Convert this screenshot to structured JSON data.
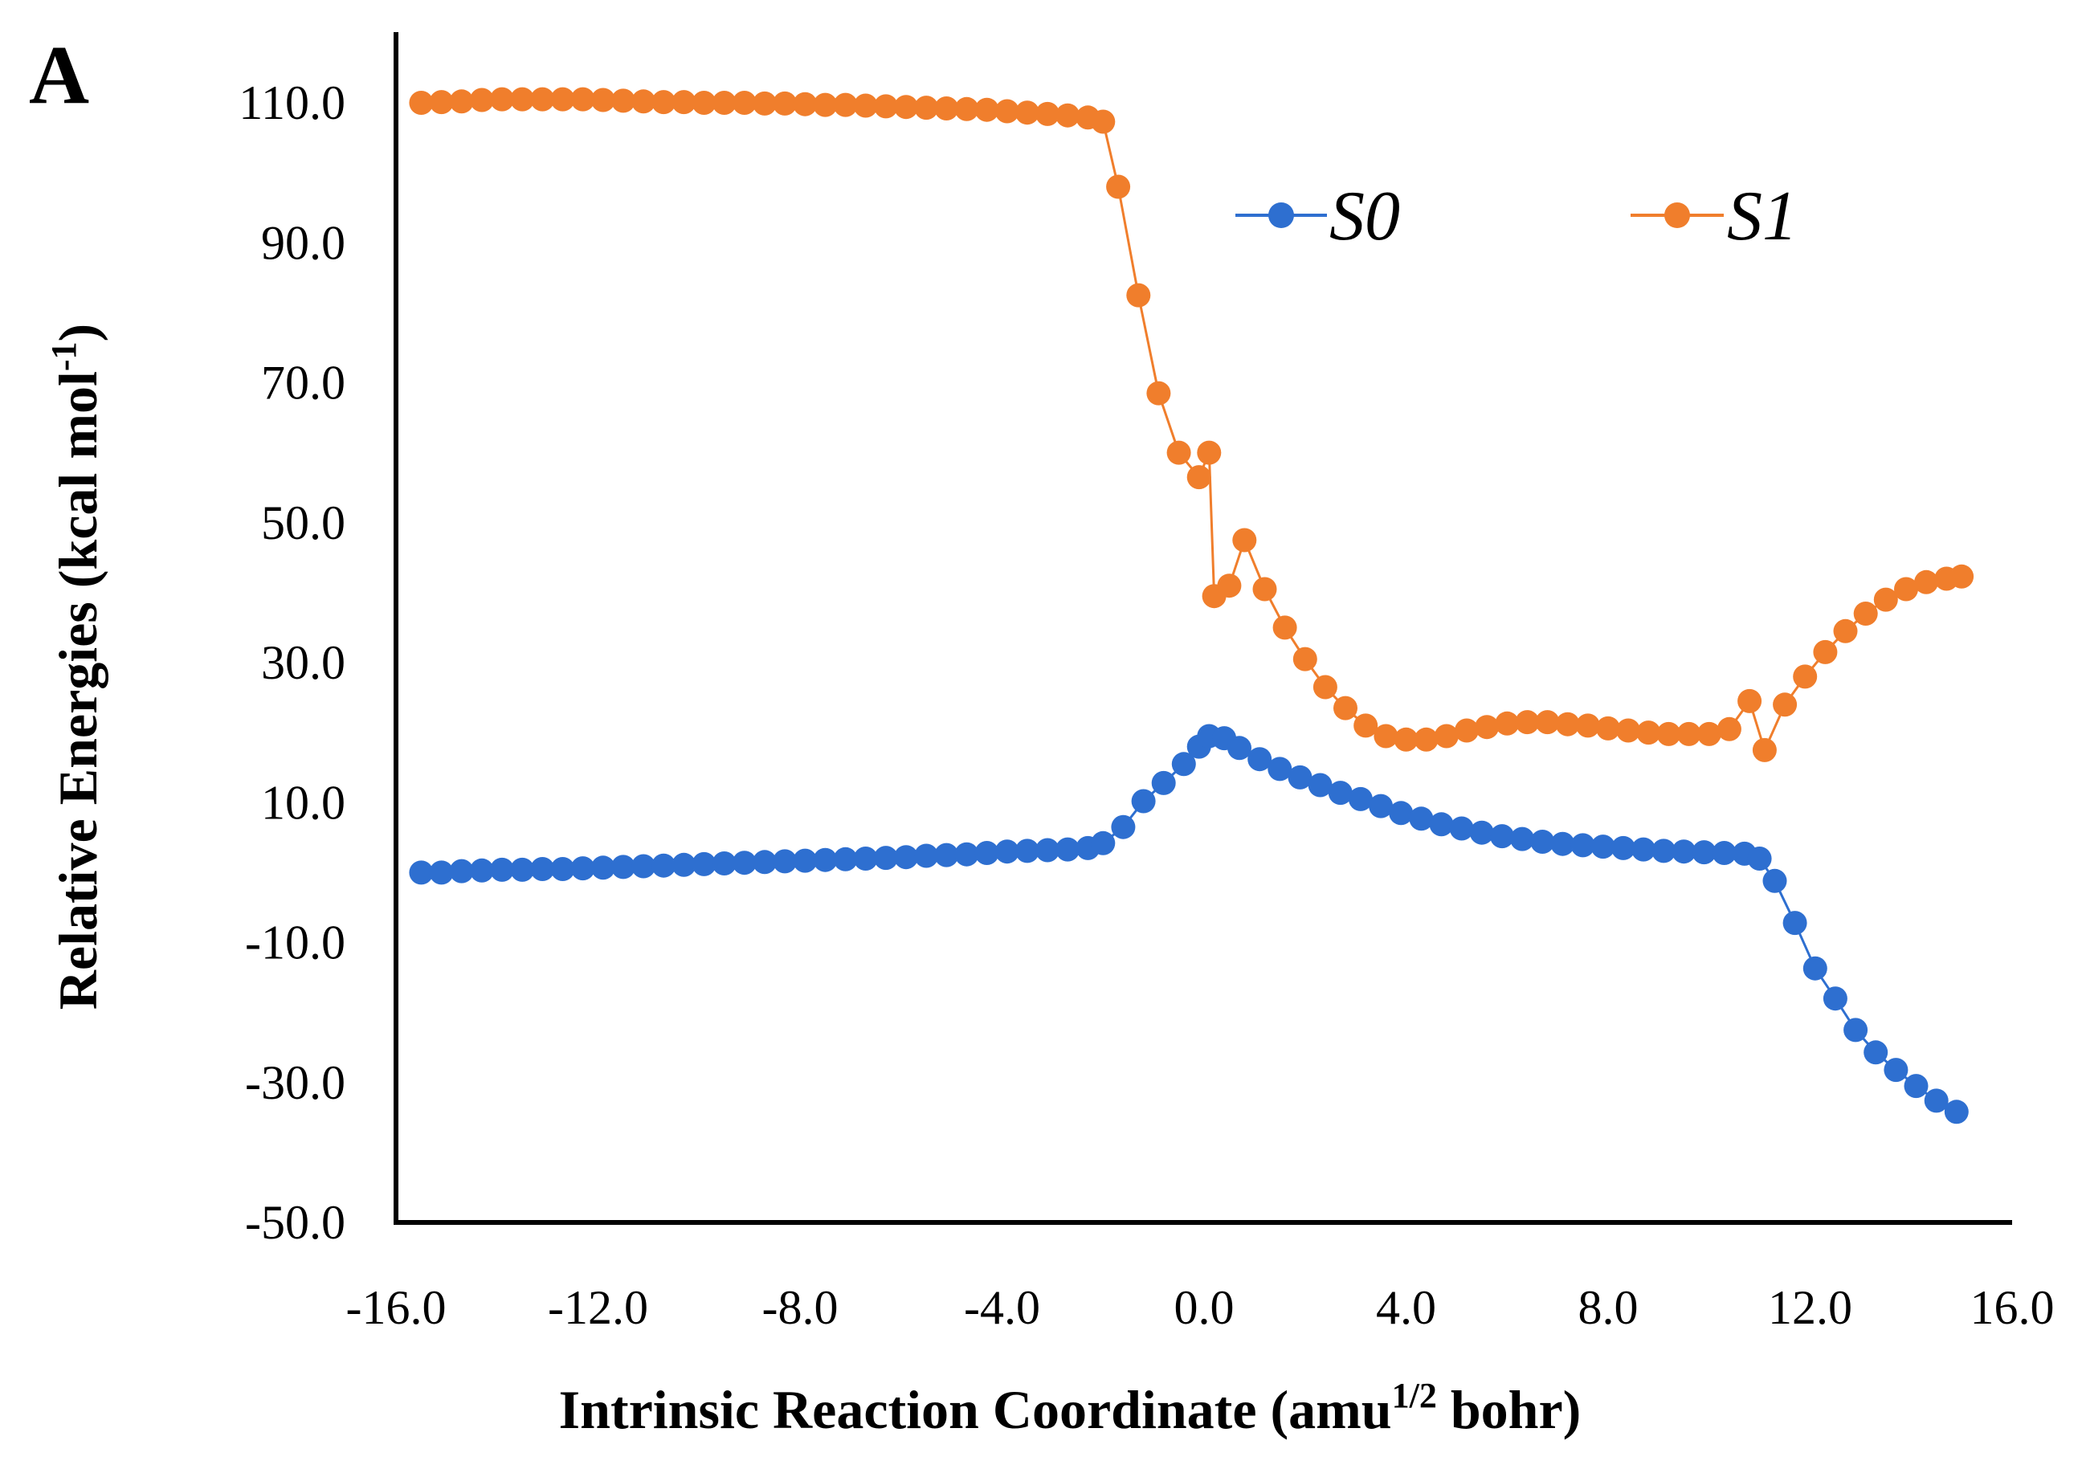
{
  "panel_label": "A",
  "chart_data": {
    "type": "line",
    "xlabel_parts": [
      "Intrinsic  Reaction Coordinate  (amu",
      "1/2",
      " bohr)"
    ],
    "ylabel_parts": [
      "Relative Energies (kcal mol",
      "-1",
      ")"
    ],
    "xlim": [
      -16,
      16
    ],
    "ylim": [
      -50,
      110
    ],
    "x_ticks": [
      -16,
      -12,
      -8,
      -4,
      0,
      4,
      8,
      12,
      16
    ],
    "x_tick_labels": [
      "-16.0",
      "-12.0",
      "-8.0",
      "-4.0",
      "0.0",
      "4.0",
      "8.0",
      "12.0",
      "16.0"
    ],
    "y_ticks": [
      110,
      90,
      70,
      50,
      30,
      10,
      -10,
      -30,
      -50
    ],
    "y_tick_labels": [
      "110.0",
      "90.0",
      "70.0",
      "50.0",
      "30.0",
      "10.0",
      "-10.0",
      "-30.0",
      "-50.0"
    ],
    "grid": false,
    "legend_position": "top-right",
    "series": [
      {
        "name": "S0",
        "color": "#2e6fd0",
        "points": [
          [
            -15.5,
            0.0
          ],
          [
            -15.1,
            0.0
          ],
          [
            -14.7,
            0.2
          ],
          [
            -14.3,
            0.3
          ],
          [
            -13.9,
            0.4
          ],
          [
            -13.5,
            0.4
          ],
          [
            -13.1,
            0.5
          ],
          [
            -12.7,
            0.5
          ],
          [
            -12.3,
            0.6
          ],
          [
            -11.9,
            0.7
          ],
          [
            -11.5,
            0.8
          ],
          [
            -11.1,
            0.9
          ],
          [
            -10.7,
            1.0
          ],
          [
            -10.3,
            1.1
          ],
          [
            -9.9,
            1.2
          ],
          [
            -9.5,
            1.3
          ],
          [
            -9.1,
            1.4
          ],
          [
            -8.7,
            1.5
          ],
          [
            -8.3,
            1.6
          ],
          [
            -7.9,
            1.7
          ],
          [
            -7.5,
            1.8
          ],
          [
            -7.1,
            1.9
          ],
          [
            -6.7,
            2.0
          ],
          [
            -6.3,
            2.1
          ],
          [
            -5.9,
            2.2
          ],
          [
            -5.5,
            2.4
          ],
          [
            -5.1,
            2.5
          ],
          [
            -4.7,
            2.6
          ],
          [
            -4.3,
            2.8
          ],
          [
            -3.9,
            3.0
          ],
          [
            -3.5,
            3.1
          ],
          [
            -3.1,
            3.2
          ],
          [
            -2.7,
            3.3
          ],
          [
            -2.3,
            3.5
          ],
          [
            -2.0,
            4.2
          ],
          [
            -1.6,
            6.5
          ],
          [
            -1.2,
            10.2
          ],
          [
            -0.8,
            12.8
          ],
          [
            -0.4,
            15.5
          ],
          [
            -0.1,
            18.0
          ],
          [
            0.1,
            19.5
          ],
          [
            0.4,
            19.2
          ],
          [
            0.7,
            17.8
          ],
          [
            1.1,
            16.2
          ],
          [
            1.5,
            14.8
          ],
          [
            1.9,
            13.6
          ],
          [
            2.3,
            12.5
          ],
          [
            2.7,
            11.4
          ],
          [
            3.1,
            10.5
          ],
          [
            3.5,
            9.5
          ],
          [
            3.9,
            8.5
          ],
          [
            4.3,
            7.7
          ],
          [
            4.7,
            6.9
          ],
          [
            5.1,
            6.3
          ],
          [
            5.5,
            5.7
          ],
          [
            5.9,
            5.2
          ],
          [
            6.3,
            4.8
          ],
          [
            6.7,
            4.4
          ],
          [
            7.1,
            4.1
          ],
          [
            7.5,
            3.9
          ],
          [
            7.9,
            3.7
          ],
          [
            8.3,
            3.5
          ],
          [
            8.7,
            3.3
          ],
          [
            9.1,
            3.1
          ],
          [
            9.5,
            3.0
          ],
          [
            9.9,
            2.9
          ],
          [
            10.3,
            2.8
          ],
          [
            10.7,
            2.7
          ],
          [
            11.0,
            2.0
          ],
          [
            11.3,
            -1.2
          ],
          [
            11.7,
            -7.2
          ],
          [
            12.1,
            -13.7
          ],
          [
            12.5,
            -18.0
          ],
          [
            12.9,
            -22.5
          ],
          [
            13.3,
            -25.7
          ],
          [
            13.7,
            -28.2
          ],
          [
            14.1,
            -30.5
          ],
          [
            14.5,
            -32.6
          ],
          [
            14.9,
            -34.2
          ]
        ]
      },
      {
        "name": "S1",
        "color": "#f07e2c",
        "points": [
          [
            -15.5,
            110.0
          ],
          [
            -15.1,
            110.1
          ],
          [
            -14.7,
            110.2
          ],
          [
            -14.3,
            110.4
          ],
          [
            -13.9,
            110.5
          ],
          [
            -13.5,
            110.5
          ],
          [
            -13.1,
            110.5
          ],
          [
            -12.7,
            110.5
          ],
          [
            -12.3,
            110.5
          ],
          [
            -11.9,
            110.4
          ],
          [
            -11.5,
            110.3
          ],
          [
            -11.1,
            110.2
          ],
          [
            -10.7,
            110.1
          ],
          [
            -10.3,
            110.1
          ],
          [
            -9.9,
            110.0
          ],
          [
            -9.5,
            110.0
          ],
          [
            -9.1,
            110.0
          ],
          [
            -8.7,
            109.9
          ],
          [
            -8.3,
            109.9
          ],
          [
            -7.9,
            109.8
          ],
          [
            -7.5,
            109.7
          ],
          [
            -7.1,
            109.7
          ],
          [
            -6.7,
            109.6
          ],
          [
            -6.3,
            109.5
          ],
          [
            -5.9,
            109.4
          ],
          [
            -5.5,
            109.3
          ],
          [
            -5.1,
            109.2
          ],
          [
            -4.7,
            109.1
          ],
          [
            -4.3,
            109.0
          ],
          [
            -3.9,
            108.8
          ],
          [
            -3.5,
            108.6
          ],
          [
            -3.1,
            108.4
          ],
          [
            -2.7,
            108.2
          ],
          [
            -2.3,
            107.9
          ],
          [
            -2.0,
            107.3
          ],
          [
            -1.7,
            98.0
          ],
          [
            -1.3,
            82.5
          ],
          [
            -0.9,
            68.5
          ],
          [
            -0.5,
            60.0
          ],
          [
            -0.1,
            56.5
          ],
          [
            0.1,
            60.0
          ],
          [
            0.2,
            39.5
          ],
          [
            0.5,
            41.0
          ],
          [
            0.8,
            47.5
          ],
          [
            1.2,
            40.5
          ],
          [
            1.6,
            35.0
          ],
          [
            2.0,
            30.5
          ],
          [
            2.4,
            26.5
          ],
          [
            2.8,
            23.5
          ],
          [
            3.2,
            21.0
          ],
          [
            3.6,
            19.5
          ],
          [
            4.0,
            19.0
          ],
          [
            4.4,
            19.0
          ],
          [
            4.8,
            19.5
          ],
          [
            5.2,
            20.3
          ],
          [
            5.6,
            20.8
          ],
          [
            6.0,
            21.3
          ],
          [
            6.4,
            21.5
          ],
          [
            6.8,
            21.5
          ],
          [
            7.2,
            21.2
          ],
          [
            7.6,
            21.0
          ],
          [
            8.0,
            20.6
          ],
          [
            8.4,
            20.3
          ],
          [
            8.8,
            20.0
          ],
          [
            9.2,
            19.8
          ],
          [
            9.6,
            19.8
          ],
          [
            10.0,
            19.8
          ],
          [
            10.4,
            20.5
          ],
          [
            10.8,
            24.5
          ],
          [
            11.1,
            17.5
          ],
          [
            11.5,
            24.0
          ],
          [
            11.9,
            28.0
          ],
          [
            12.3,
            31.5
          ],
          [
            12.7,
            34.5
          ],
          [
            13.1,
            37.0
          ],
          [
            13.5,
            39.0
          ],
          [
            13.9,
            40.5
          ],
          [
            14.3,
            41.5
          ],
          [
            14.7,
            42.0
          ],
          [
            15.0,
            42.3
          ]
        ]
      }
    ]
  }
}
